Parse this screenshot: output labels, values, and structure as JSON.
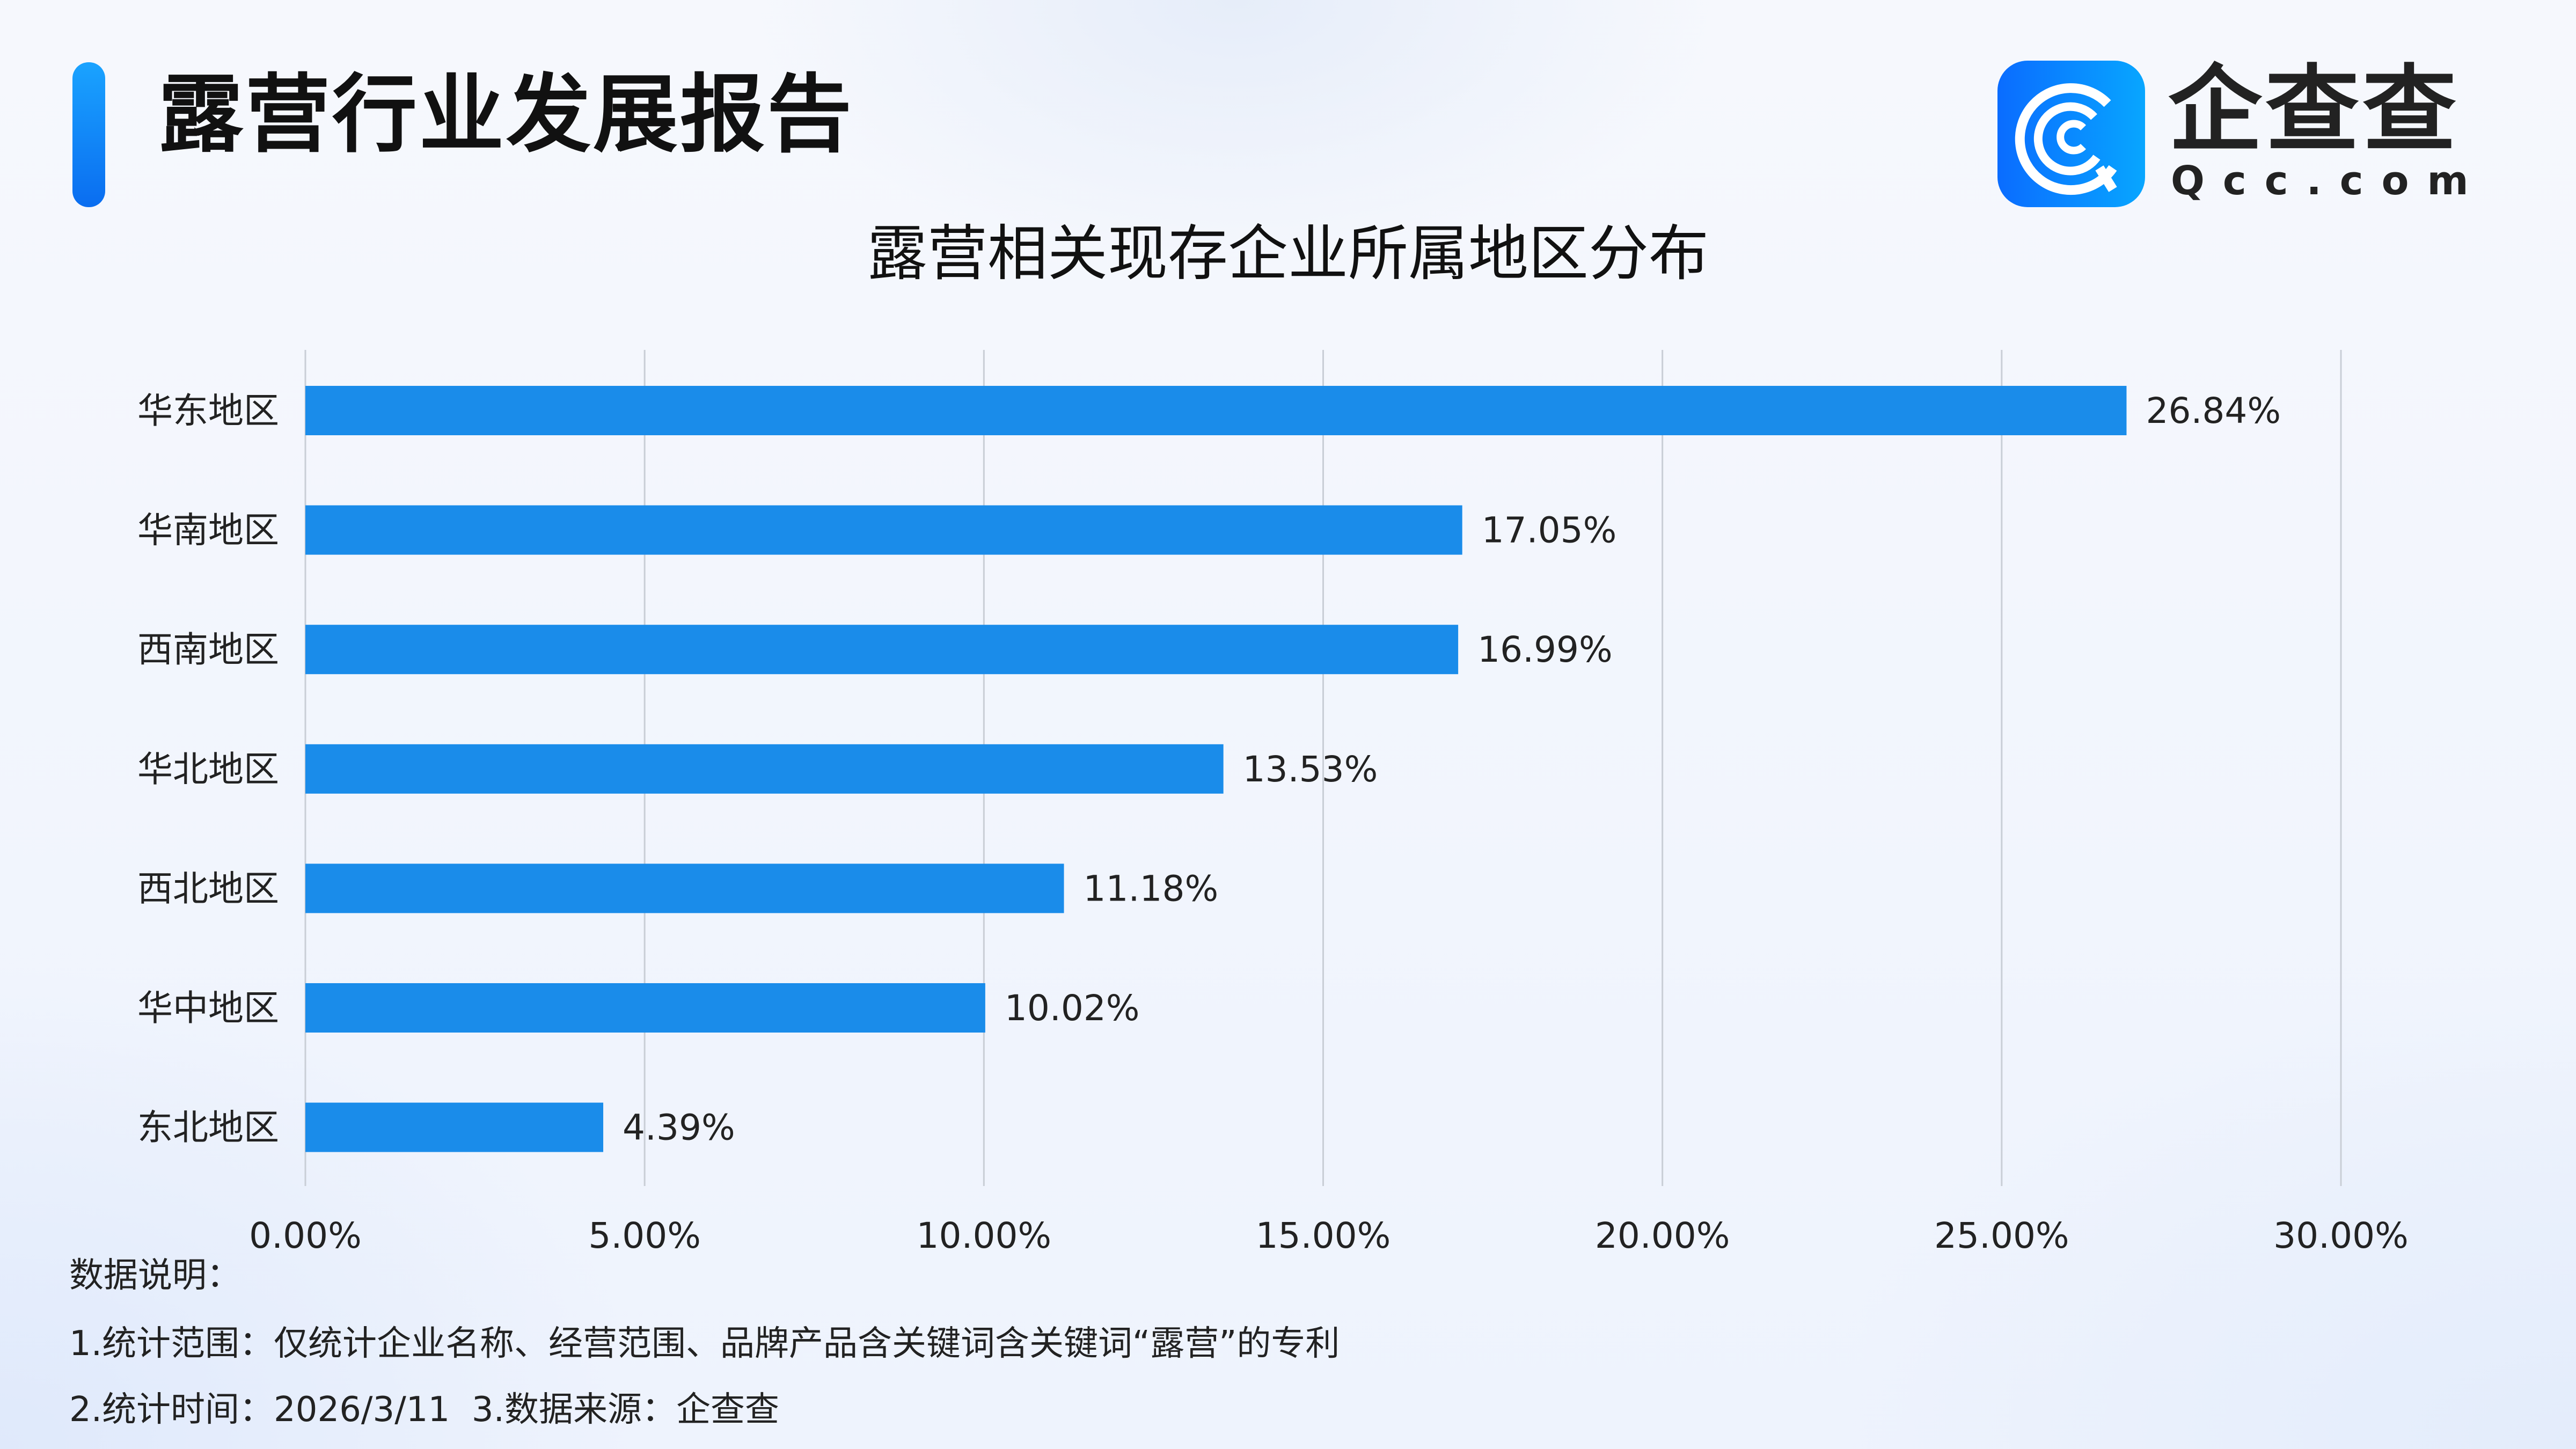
{
  "header": {
    "title": "露营行业发展报告",
    "logo_text": "企查查",
    "logo_sub": "Qcc.com"
  },
  "chart_data": {
    "type": "bar",
    "orientation": "horizontal",
    "title": "露营相关现存企业所属地区分布",
    "categories": [
      "华东地区",
      "华南地区",
      "西南地区",
      "华北地区",
      "西北地区",
      "华中地区",
      "东北地区"
    ],
    "values": [
      26.84,
      17.05,
      16.99,
      13.53,
      11.18,
      10.02,
      4.39
    ],
    "value_labels": [
      "26.84%",
      "17.05%",
      "16.99%",
      "13.53%",
      "11.18%",
      "10.02%",
      "4.39%"
    ],
    "xlim": [
      0,
      30
    ],
    "x_ticks": [
      "0.00%",
      "5.00%",
      "10.00%",
      "15.00%",
      "20.00%",
      "25.00%",
      "30.00%"
    ],
    "grid": true,
    "bar_color": "#1a8cea"
  },
  "notes": {
    "heading": "数据说明：",
    "line1": "1.统计范围：仅统计企业名称、经营范围、品牌产品含关键词含关键词“露营”的专利",
    "line2": "2.统计时间：2026/3/11  3.数据来源：企查查"
  }
}
